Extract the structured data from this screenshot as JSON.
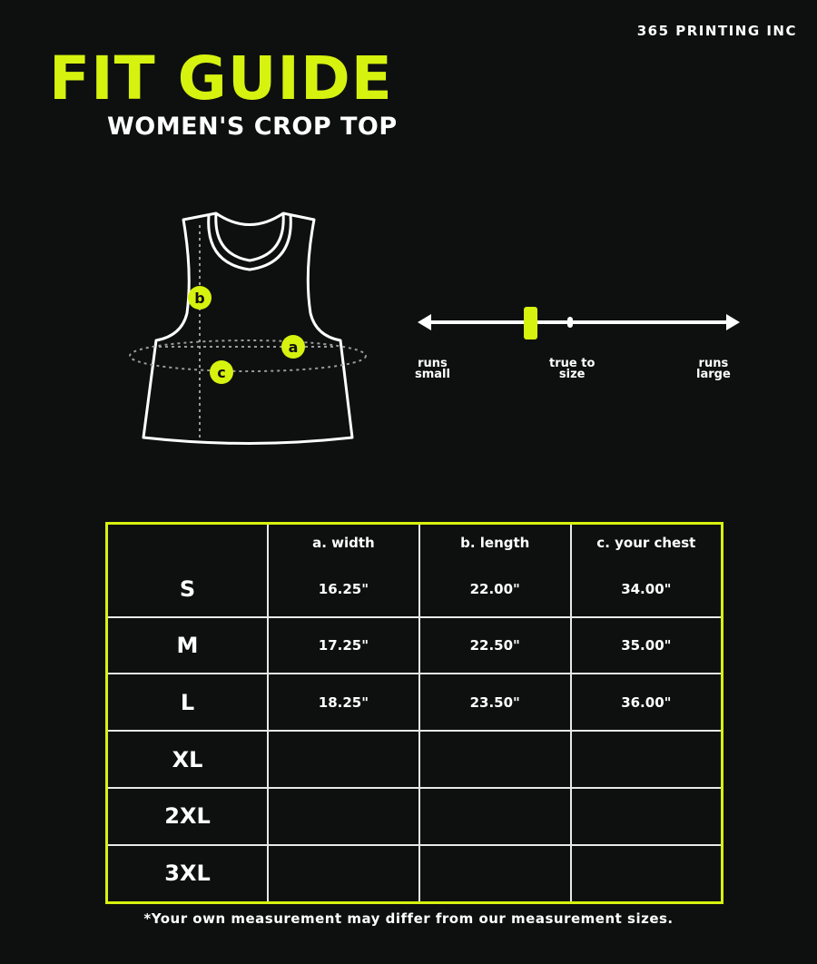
{
  "brand": "365 PRINTING INC",
  "title": "FIT GUIDE",
  "subtitle": "WOMEN'S CROP TOP",
  "colors": {
    "accent": "#d6f20f",
    "background": "#0e1010",
    "line": "#ffffff"
  },
  "diagram": {
    "markers": [
      "a",
      "b",
      "c"
    ]
  },
  "fit_scale": {
    "labels": {
      "left": [
        "runs",
        "small"
      ],
      "center": [
        "true to",
        "size"
      ],
      "right": [
        "runs",
        "large"
      ]
    },
    "range": [
      -1,
      1
    ],
    "value": -0.27
  },
  "table": {
    "headers": [
      "",
      "a. width",
      "b. length",
      "c. your chest"
    ],
    "rows": [
      {
        "size": "S",
        "cells": [
          "16.25\"",
          "22.00\"",
          "34.00\""
        ]
      },
      {
        "size": "M",
        "cells": [
          "17.25\"",
          "22.50\"",
          "35.00\""
        ]
      },
      {
        "size": "L",
        "cells": [
          "18.25\"",
          "23.50\"",
          "36.00\""
        ]
      },
      {
        "size": "XL",
        "cells": [
          "",
          "",
          ""
        ]
      },
      {
        "size": "2XL",
        "cells": [
          "",
          "",
          ""
        ]
      },
      {
        "size": "3XL",
        "cells": [
          "",
          "",
          ""
        ]
      }
    ]
  },
  "footnote": "*Your own measurement may differ from our measurement sizes."
}
